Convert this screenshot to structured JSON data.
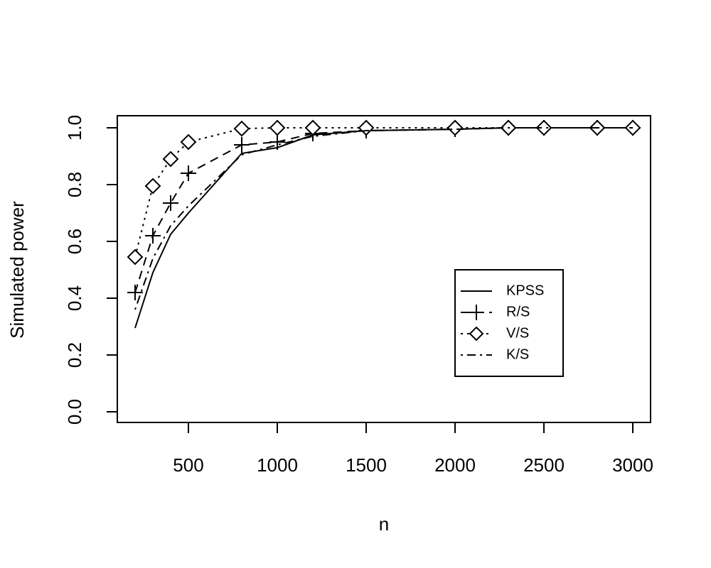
{
  "chart_data": {
    "type": "line",
    "x_label": "n",
    "y_label": "Simulated power",
    "x": [
      200,
      300,
      400,
      500,
      800,
      1000,
      1200,
      1500,
      2000,
      2300,
      2500,
      2800,
      3000
    ],
    "series": [
      {
        "name": "KPSS",
        "color": "#000000",
        "line_style": "solid",
        "marker": "none",
        "values": [
          0.295,
          0.49,
          0.625,
          0.7,
          0.91,
          0.93,
          0.975,
          0.99,
          0.995,
          1.0,
          1.0,
          1.0,
          1.0
        ]
      },
      {
        "name": "R/S",
        "color": "#000000",
        "line_style": "dashed",
        "marker": "plus",
        "values": [
          0.42,
          0.62,
          0.735,
          0.84,
          0.94,
          0.95,
          0.98,
          0.99,
          0.995,
          1.0,
          1.0,
          1.0,
          1.0
        ]
      },
      {
        "name": "V/S",
        "color": "#000000",
        "line_style": "dotted",
        "marker": "diamond",
        "values": [
          0.545,
          0.795,
          0.89,
          0.95,
          0.997,
          1.0,
          1.0,
          1.0,
          1.0,
          1.0,
          1.0,
          1.0,
          1.0
        ]
      },
      {
        "name": "K/S",
        "color": "#000000",
        "line_style": "dotdash",
        "marker": "none",
        "values": [
          0.36,
          0.54,
          0.655,
          0.725,
          0.905,
          0.94,
          0.97,
          0.99,
          0.995,
          1.0,
          1.0,
          1.0,
          1.0
        ]
      }
    ],
    "xlim": [
      100,
      3100
    ],
    "xticks": [
      500,
      1000,
      1500,
      2000,
      2500,
      3000
    ],
    "ylim": [
      -0.0375,
      1.0425
    ],
    "yticks": [
      {
        "value": 0,
        "label": "0.0"
      },
      0.2,
      0.4,
      0.6,
      0.8,
      {
        "value": 1,
        "label": "1.0"
      }
    ],
    "legend": "center right"
  }
}
